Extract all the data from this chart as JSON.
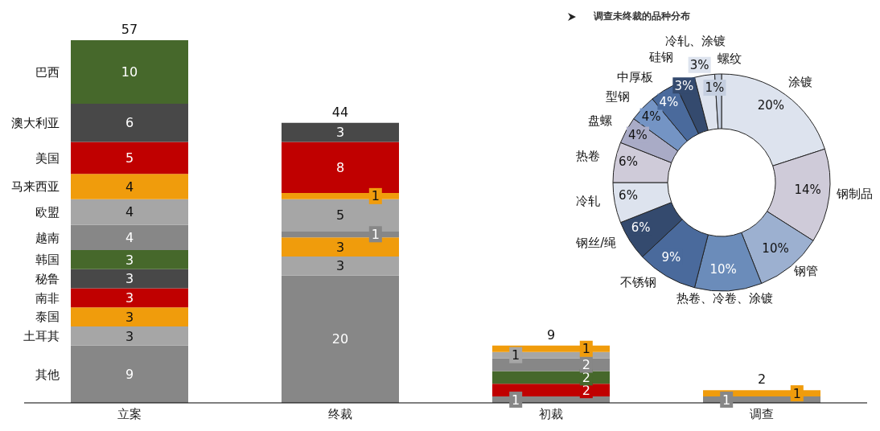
{
  "chart_data": [
    {
      "type": "bar",
      "stacked": true,
      "categories": [
        "立案",
        "终裁",
        "初裁",
        "调查"
      ],
      "data_labels": true,
      "totals": [
        "57",
        "44",
        "9",
        "2"
      ],
      "legend": false,
      "series": [
        {
          "name": "其他",
          "color": "#878787",
          "values": [
            9,
            20,
            1,
            1
          ]
        },
        {
          "name": "土耳其",
          "color": "#a6a6a6",
          "values": [
            3,
            3,
            null,
            null
          ]
        },
        {
          "name": "泰国",
          "color": "#f09c0c",
          "values": [
            3,
            3,
            null,
            null
          ]
        },
        {
          "name": "南非",
          "color": "#c00000",
          "values": [
            3,
            null,
            2,
            null
          ]
        },
        {
          "name": "秘鲁",
          "color": "#484848",
          "values": [
            3,
            null,
            null,
            null
          ]
        },
        {
          "name": "韩国",
          "color": "#46682b",
          "values": [
            3,
            null,
            2,
            null
          ]
        },
        {
          "name": "越南",
          "color": "#878787",
          "values": [
            4,
            1,
            2,
            null
          ]
        },
        {
          "name": "欧盟",
          "color": "#a6a6a6",
          "values": [
            4,
            5,
            1,
            null
          ]
        },
        {
          "name": "马来西亚",
          "color": "#f09c0c",
          "values": [
            4,
            1,
            1,
            1
          ]
        },
        {
          "name": "美国",
          "color": "#c00000",
          "values": [
            5,
            8,
            null,
            null
          ]
        },
        {
          "name": "澳大利亚",
          "color": "#484848",
          "values": [
            6,
            3,
            null,
            null
          ]
        },
        {
          "name": "巴西",
          "color": "#46682b",
          "values": [
            10,
            null,
            null,
            null
          ]
        }
      ]
    },
    {
      "type": "donut",
      "title": "调查未终裁的品种分布",
      "categories": [
        "涂镀",
        "钢制品",
        "钢管",
        "热卷、冷卷、涂镀",
        "不锈钢",
        "钢丝/绳",
        "冷轧",
        "热卷",
        "盘螺",
        "型钢",
        "中厚板",
        "硅钢",
        "冷轧、涂镀",
        "螺纹"
      ],
      "values": [
        20,
        14,
        10,
        10,
        9,
        6,
        6,
        6,
        4,
        4,
        4,
        3,
        3,
        1
      ],
      "value_labels": [
        "20%",
        "14%",
        "10%",
        "10%",
        "9%",
        "6%",
        "6%",
        "6%",
        "4%",
        "4%",
        "4%",
        "3%",
        "3%",
        "1%"
      ],
      "colors": [
        "#dde3ee",
        "#cfcbd9",
        "#9cb0d0",
        "#6b8cba",
        "#4a6a9c",
        "#344a6e",
        "#dde3ee",
        "#cfcbd9",
        "#a9abc6",
        "#7494c4",
        "#4a6a9c",
        "#344a6e",
        "#dde3ee",
        "#c5cfe0"
      ]
    }
  ]
}
